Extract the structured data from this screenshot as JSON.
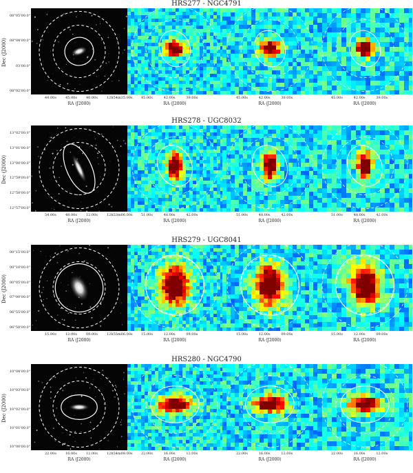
{
  "rows": [
    {
      "title": "HRS277 - NGC4791",
      "ylabel": "Dec (J2000)",
      "yticks": [
        "08°05'00.0\"",
        "08°04'00.0\"",
        "03'00.0\"",
        "08°02'00.0\""
      ],
      "xlabel": "RA (J2000)",
      "xticks": [
        "44.00s",
        "45.00s",
        "40.00s",
        "12h54m35.00s"
      ],
      "xticks_heat": [
        "45.00s",
        "42.00s",
        "39.00s"
      ],
      "galaxy_angle": -20,
      "galaxy_rx": 0.12,
      "galaxy_ry": 0.06,
      "heat_profile": "small"
    },
    {
      "title": "HRS278 - UGC8032",
      "ylabel": "Dec (J2000)",
      "yticks": [
        "13°02'00.0\"",
        "13°01'00.0\"",
        "13°00'00.0\"",
        "12°59'00.0\"",
        "12°58'00.0\"",
        "12°57'00.0\""
      ],
      "xlabel": "RA (J2000)",
      "xticks": [
        "54.00s",
        "48.00s",
        "12.00s",
        "12h53m06.00s"
      ],
      "xticks_heat": [
        "51.00s",
        "48.00s",
        "42.00s"
      ],
      "galaxy_angle": 65,
      "galaxy_rx": 0.22,
      "galaxy_ry": 0.05,
      "heat_profile": "tall"
    },
    {
      "title": "HRS279 - UGC8041",
      "ylabel": "Dec (J2000)",
      "yticks": [
        "00°15'00.0\"",
        "00°10'00.0\"",
        "00°05'00.0\"",
        "07°00'00.0\"",
        "06°55'00.0\"",
        "06°50'00.0\""
      ],
      "xlabel": "RA (J2000)",
      "xticks": [
        "15.00s",
        "12.00s",
        "09.00s",
        "12h55m06.00s"
      ],
      "xticks_heat": [
        "15.00s",
        "12.00s",
        "09.00s"
      ],
      "galaxy_angle": 65,
      "galaxy_rx": 0.2,
      "galaxy_ry": 0.12,
      "heat_profile": "big"
    },
    {
      "title": "HRS280 - NGC4790",
      "ylabel": "Dec (J2000)",
      "yticks": [
        "10°04'00.0\"",
        "10°03'00.0\"",
        "10°02'00.0\"",
        "10°01'00.0\"",
        "10°00'00.0\""
      ],
      "xlabel": "RA (J2000)",
      "xticks": [
        "22.00s",
        "16.00s",
        "12.00s",
        "12h54m08.00s"
      ],
      "xticks_heat": [
        "22.00s",
        "16.00s",
        "12.00s"
      ],
      "galaxy_angle": 0,
      "galaxy_rx": 0.15,
      "galaxy_ry": 0.05,
      "heat_profile": "wide"
    }
  ]
}
